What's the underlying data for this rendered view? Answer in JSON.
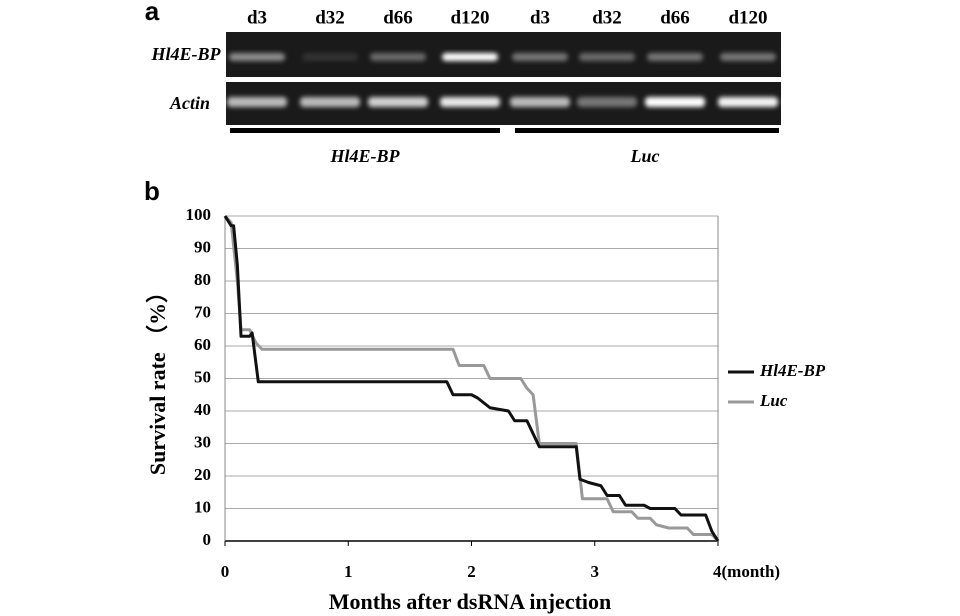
{
  "panel_labels": [
    "a",
    "b"
  ],
  "gel": {
    "lanes": [
      "d3",
      "d32",
      "d66",
      "d120",
      "d3",
      "d32",
      "d66",
      "d120"
    ],
    "rows": [
      "Hl4E-BP",
      "Actin"
    ],
    "groups": [
      "Hl4E-BP",
      "Luc"
    ]
  },
  "chart_data": {
    "type": "line",
    "xlabel": "Months after dsRNA injection",
    "ylabel": "Survival rate （%）",
    "xlim": [
      0,
      4
    ],
    "xticks": [
      0,
      1,
      2,
      3,
      {
        "value": 4,
        "label": "4(month)"
      }
    ],
    "ylim": [
      0,
      100
    ],
    "yticks": [
      0,
      10,
      20,
      30,
      40,
      50,
      60,
      70,
      80,
      90,
      100
    ],
    "grid": true,
    "legend": "right",
    "series": [
      {
        "name": "Hl4E-BP",
        "color": "#111111",
        "x": [
          0,
          0.05,
          0.07,
          0.1,
          0.13,
          0.2,
          0.22,
          0.27,
          1.8,
          1.85,
          2.0,
          2.05,
          2.15,
          2.3,
          2.35,
          2.45,
          2.5,
          2.55,
          2.85,
          2.88,
          2.95,
          3.05,
          3.1,
          3.2,
          3.25,
          3.4,
          3.45,
          3.65,
          3.7,
          3.9,
          3.95,
          4.0
        ],
        "values": [
          100,
          97,
          97,
          85,
          63,
          63,
          64,
          49,
          49,
          45,
          45,
          44,
          41,
          40,
          37,
          37,
          33,
          29,
          29,
          19,
          18,
          17,
          14,
          14,
          11,
          11,
          10,
          10,
          8,
          8,
          3,
          0
        ]
      },
      {
        "name": "Luc",
        "color": "#999999",
        "x": [
          0,
          0.05,
          0.1,
          0.13,
          0.2,
          0.25,
          0.3,
          1.85,
          1.9,
          2.1,
          2.15,
          2.4,
          2.45,
          2.5,
          2.55,
          2.85,
          2.9,
          3.1,
          3.15,
          3.3,
          3.35,
          3.45,
          3.5,
          3.6,
          3.75,
          3.8,
          3.95,
          4.0
        ],
        "values": [
          100,
          98,
          80,
          65,
          65,
          61,
          59,
          59,
          54,
          54,
          50,
          50,
          47,
          45,
          30,
          30,
          13,
          13,
          9,
          9,
          7,
          7,
          5,
          4,
          4,
          2,
          2,
          0
        ]
      }
    ]
  }
}
